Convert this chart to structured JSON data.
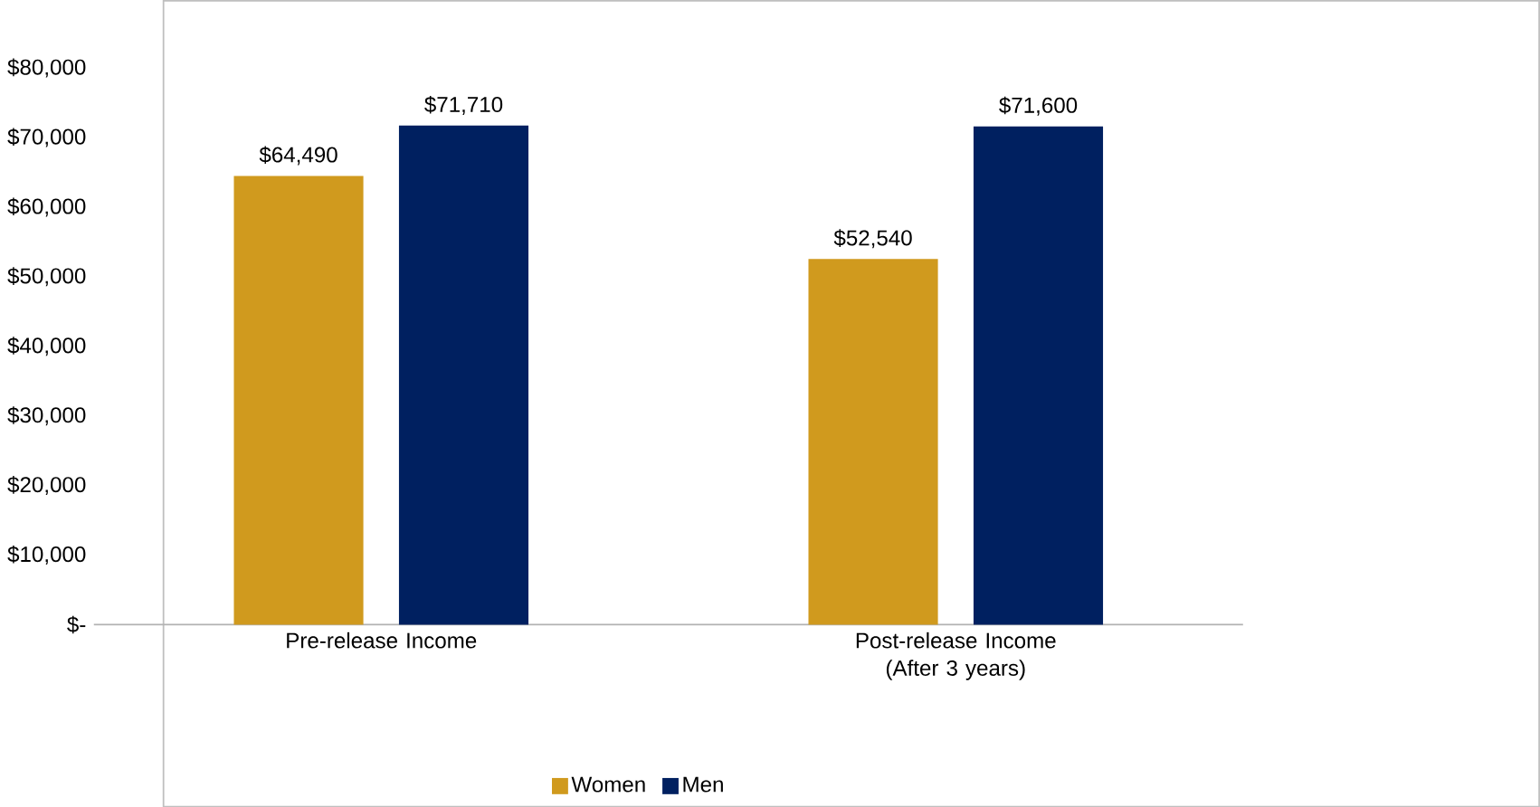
{
  "chart_data": {
    "type": "bar",
    "categories": [
      "Pre-release Income",
      "Post-release Income (After 3 years)"
    ],
    "series": [
      {
        "name": "Women",
        "color": "#d09a1e",
        "values": [
          64490,
          52540
        ],
        "value_labels": [
          "$64,490",
          "$52,540"
        ]
      },
      {
        "name": "Men",
        "color": "#002060",
        "values": [
          71710,
          71600
        ],
        "value_labels": [
          "$71,710",
          "$71,600"
        ]
      }
    ],
    "ylim": [
      0,
      80000
    ],
    "yticks": [
      {
        "value": 0,
        "label": "$-"
      },
      {
        "value": 10000,
        "label": "$10,000"
      },
      {
        "value": 20000,
        "label": "$20,000"
      },
      {
        "value": 30000,
        "label": "$30,000"
      },
      {
        "value": 40000,
        "label": "$40,000"
      },
      {
        "value": 50000,
        "label": "$50,000"
      },
      {
        "value": 60000,
        "label": "$60,000"
      },
      {
        "value": 70000,
        "label": "$70,000"
      },
      {
        "value": 80000,
        "label": "$80,000"
      }
    ],
    "grid": false,
    "legend": "bottom"
  }
}
